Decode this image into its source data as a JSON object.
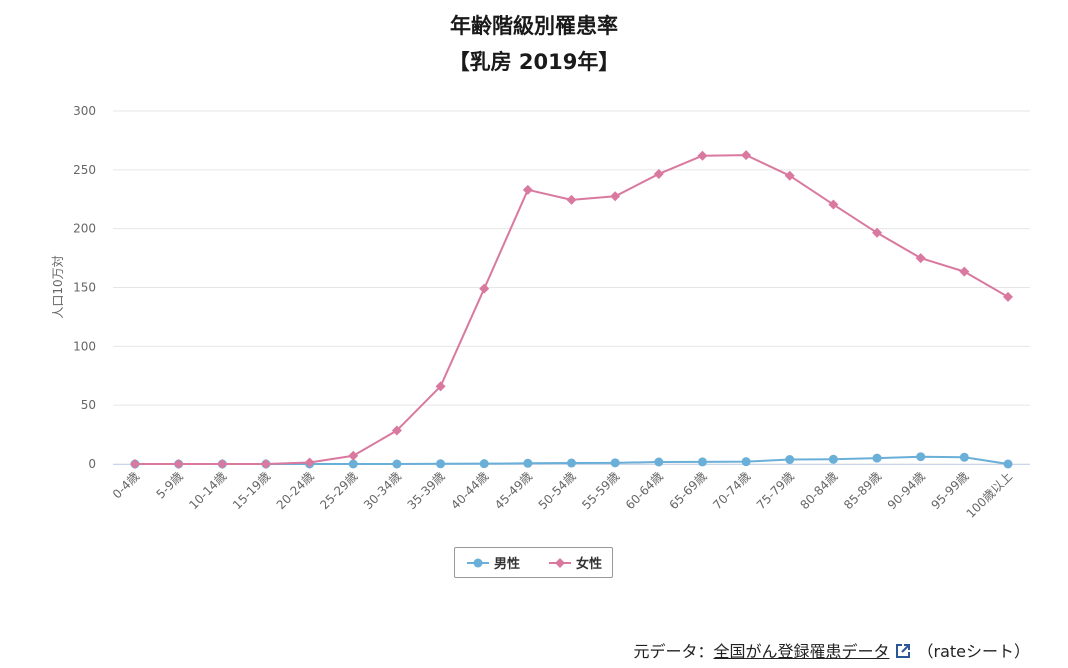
{
  "title_line1": "年齢階級別罹患率",
  "title_line2": "【乳房 2019年】",
  "footer": {
    "prefix": "元データ：",
    "link_text": "全国がん登録罹患データ",
    "suffix": "（rateシート）"
  },
  "icons": {
    "external_link": "external-link-icon"
  },
  "chart_data": {
    "type": "line",
    "title": "年齢階級別罹患率",
    "subtitle": "【乳房 2019年】",
    "xlabel": "",
    "ylabel": "人口10万対",
    "ylim": [
      0,
      300
    ],
    "yticks": [
      0,
      50,
      100,
      150,
      200,
      250,
      300
    ],
    "grid": true,
    "legend_position": "bottom-center",
    "categories": [
      "0-4歳",
      "5-9歳",
      "10-14歳",
      "15-19歳",
      "20-24歳",
      "25-29歳",
      "30-34歳",
      "35-39歳",
      "40-44歳",
      "45-49歳",
      "50-54歳",
      "55-59歳",
      "60-64歳",
      "65-69歳",
      "70-74歳",
      "75-79歳",
      "80-84歳",
      "85-89歳",
      "90-94歳",
      "95-99歳",
      "100歳以上"
    ],
    "series": [
      {
        "name": "男性",
        "color": "#6aafd7",
        "marker": "circle",
        "values": [
          0,
          0,
          0,
          0,
          0,
          0,
          0,
          0.2,
          0.3,
          0.6,
          0.8,
          1.0,
          1.7,
          1.8,
          2.0,
          3.8,
          4.0,
          5.0,
          6.2,
          5.7,
          0
        ]
      },
      {
        "name": "女性",
        "color": "#d9799f",
        "marker": "diamond",
        "values": [
          0,
          0,
          0,
          0,
          1.3,
          7.0,
          28.5,
          66.0,
          149.0,
          233.0,
          224.5,
          227.5,
          246.5,
          262.0,
          262.5,
          245.0,
          220.5,
          196.5,
          175.0,
          163.5,
          142.0
        ]
      }
    ]
  }
}
